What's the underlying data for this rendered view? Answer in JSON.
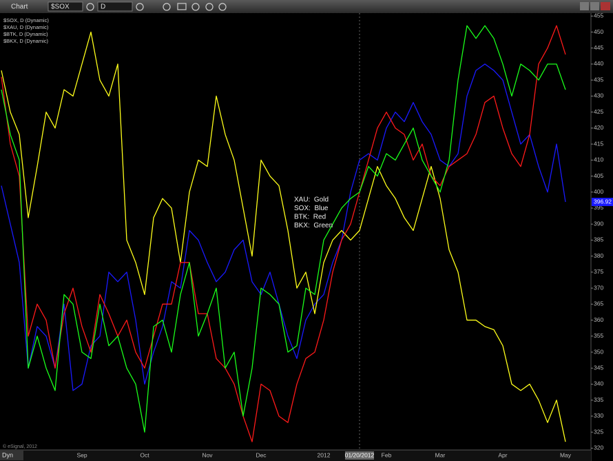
{
  "toolbar": {
    "title": "Chart",
    "symbol": "$SOX",
    "interval": "D"
  },
  "footer": {
    "copyright": "© eSignal, 2012",
    "mode": "Dyn"
  },
  "chart_data": {
    "type": "line",
    "annotations": [
      "XAU:  Gold",
      "SOX:  Blue",
      "BTK:  Red",
      "BKX:  Green"
    ],
    "categories": [
      null,
      null,
      null,
      null,
      null,
      null,
      null,
      null,
      null,
      "Sep",
      null,
      null,
      null,
      null,
      null,
      null,
      "Oct",
      null,
      null,
      null,
      null,
      null,
      null,
      "Nov",
      null,
      null,
      null,
      null,
      null,
      "Dec",
      null,
      null,
      null,
      null,
      null,
      null,
      "2012",
      null,
      null,
      null,
      "01/20/2012",
      null,
      null,
      "Feb",
      null,
      null,
      null,
      null,
      null,
      "Mar",
      null,
      null,
      null,
      null,
      null,
      null,
      "Apr",
      null,
      null,
      null,
      null,
      null,
      null,
      "May"
    ],
    "series": [
      {
        "name": "$SOX, D (Dynamic)",
        "color": "#1a1aff",
        "values": [
          402,
          390,
          378,
          345,
          358,
          355,
          345,
          365,
          338,
          340,
          352,
          355,
          375,
          372,
          375,
          360,
          340,
          350,
          358,
          372,
          370,
          388,
          385,
          378,
          372,
          375,
          382,
          385,
          372,
          368,
          375,
          365,
          355,
          348,
          360,
          365,
          368,
          378,
          385,
          400,
          410,
          412,
          410,
          420,
          425,
          422,
          428,
          422,
          418,
          410,
          408,
          412,
          430,
          438,
          440,
          438,
          435,
          425,
          415,
          418,
          408,
          400,
          415,
          396.92
        ]
      },
      {
        "name": "$XAU, D (Dynamic)",
        "color": "#ffff1a",
        "values": [
          438,
          425,
          418,
          392,
          408,
          425,
          420,
          432,
          430,
          440,
          450,
          435,
          430,
          440,
          385,
          378,
          368,
          392,
          398,
          395,
          378,
          400,
          410,
          408,
          430,
          418,
          410,
          395,
          380,
          410,
          405,
          402,
          388,
          370,
          375,
          362,
          378,
          385,
          388,
          385,
          388,
          398,
          408,
          402,
          398,
          392,
          388,
          398,
          408,
          398,
          382,
          375,
          360,
          360,
          358,
          357,
          352,
          340,
          338,
          340,
          335,
          328,
          335,
          322
        ]
      },
      {
        "name": "$BTK, D (Dynamic)",
        "color": "#ff1a1a",
        "values": [
          436,
          415,
          405,
          355,
          365,
          360,
          345,
          362,
          370,
          358,
          350,
          368,
          362,
          355,
          360,
          350,
          345,
          355,
          365,
          365,
          378,
          378,
          362,
          362,
          348,
          345,
          340,
          330,
          322,
          340,
          338,
          330,
          328,
          340,
          348,
          350,
          360,
          375,
          385,
          390,
          400,
          410,
          420,
          425,
          420,
          418,
          410,
          415,
          405,
          402,
          408,
          410,
          412,
          418,
          428,
          430,
          420,
          412,
          408,
          418,
          440,
          445,
          452,
          443
        ]
      },
      {
        "name": "$BKX, D (Dynamic)",
        "color": "#1aff1a",
        "values": [
          432,
          418,
          410,
          345,
          355,
          345,
          338,
          368,
          365,
          350,
          348,
          365,
          352,
          355,
          345,
          340,
          325,
          358,
          360,
          350,
          368,
          378,
          355,
          362,
          370,
          345,
          350,
          330,
          345,
          370,
          368,
          365,
          350,
          352,
          370,
          368,
          385,
          390,
          395,
          398,
          400,
          408,
          405,
          412,
          410,
          415,
          420,
          410,
          405,
          400,
          410,
          435,
          452,
          448,
          452,
          448,
          440,
          430,
          440,
          438,
          435,
          440,
          440,
          432
        ]
      }
    ],
    "ylim": [
      319,
      457
    ],
    "yticks": [
      320,
      325,
      330,
      335,
      340,
      345,
      350,
      355,
      360,
      365,
      370,
      375,
      380,
      385,
      390,
      395,
      400,
      405,
      410,
      415,
      420,
      425,
      430,
      435,
      440,
      445,
      450,
      455
    ],
    "y_axis_side": "right"
  }
}
